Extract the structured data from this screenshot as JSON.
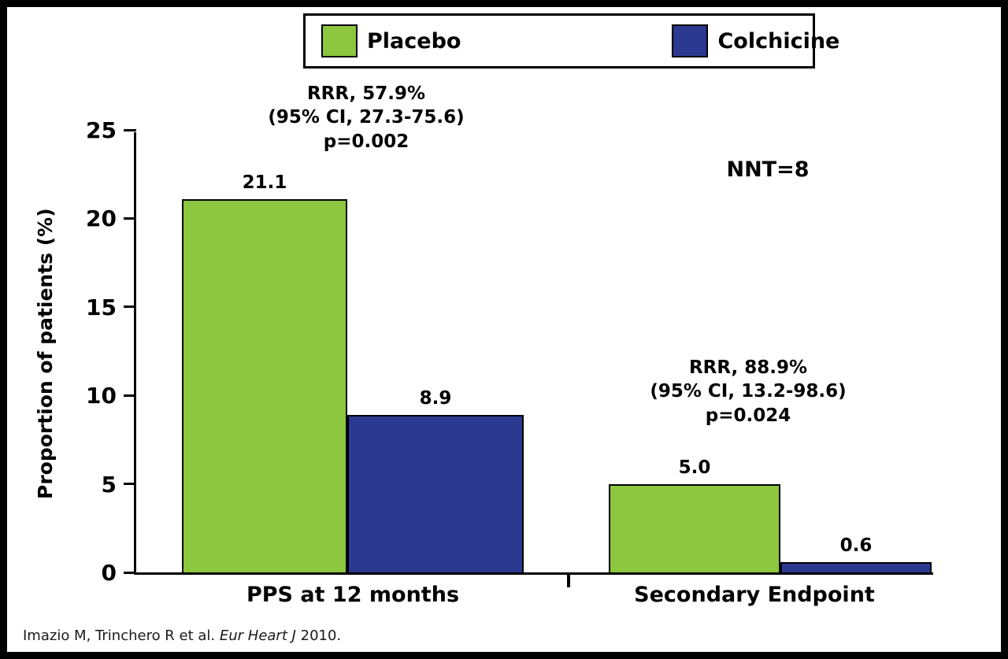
{
  "chart_data": {
    "type": "bar",
    "title": "",
    "xlabel": "",
    "ylabel": "Proportion of patients (%)",
    "ylim": [
      0,
      25
    ],
    "yticks": [
      0,
      5,
      10,
      15,
      20,
      25
    ],
    "grid": false,
    "legend_position": "top",
    "categories": [
      "PPS at 12 months",
      "Secondary Endpoint"
    ],
    "series": [
      {
        "name": "Placebo",
        "color": "#8DC63F",
        "values": [
          21.1,
          5.0
        ]
      },
      {
        "name": "Colchicine",
        "color": "#2B3990",
        "values": [
          8.9,
          0.6
        ]
      }
    ],
    "annotations": {
      "pps": {
        "lines": [
          "RRR, 57.9%",
          "(95% CI, 27.3-75.6)",
          "p=0.002"
        ]
      },
      "nnt": {
        "text": "NNT=8"
      },
      "secondary": {
        "lines": [
          "RRR, 88.9%",
          "(95% CI, 13.2-98.6)",
          "p=0.024"
        ]
      }
    }
  },
  "citation": {
    "prefix": "Imazio M, Trinchero R et al. ",
    "journal": "Eur Heart J",
    "suffix": " 2010."
  }
}
